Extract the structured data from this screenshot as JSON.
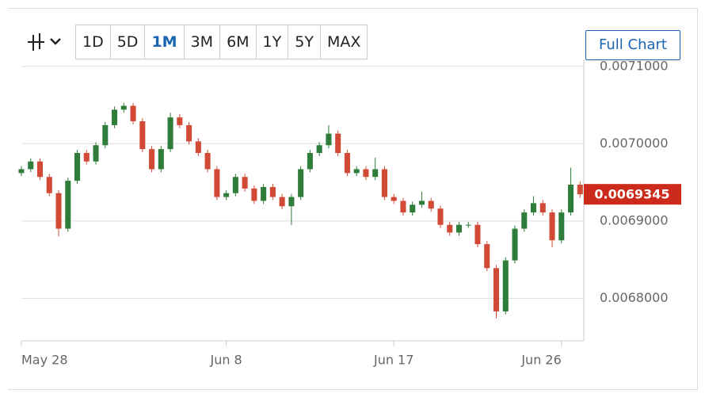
{
  "toolbar": {
    "ranges": [
      "1D",
      "5D",
      "1M",
      "3M",
      "6M",
      "1Y",
      "5Y",
      "MAX"
    ],
    "active": "1M",
    "full_chart": "Full Chart"
  },
  "chart_data": {
    "type": "candlestick",
    "x": [
      0,
      0.5,
      1,
      1.5,
      2,
      2.5,
      3,
      3.5,
      4,
      4.5,
      5,
      5.5,
      6,
      6.5,
      7,
      7.5,
      8,
      8.5,
      9,
      9.5,
      10,
      10.5,
      11,
      11.5,
      12,
      12.5,
      13,
      13.5,
      14,
      14.5,
      15,
      15.5,
      16,
      16.5,
      17,
      17.5,
      18,
      18.5,
      19,
      19.5,
      20,
      20.5,
      21,
      21.5,
      22,
      22.5,
      23,
      23.5,
      24,
      24.5,
      25,
      25.5,
      26,
      26.5,
      27,
      27.5,
      28,
      28.5,
      29,
      29.5,
      30
    ],
    "open": [
      0.006962,
      0.006967,
      0.006977,
      0.006957,
      0.006936,
      0.00689,
      0.006952,
      0.006988,
      0.006977,
      0.006998,
      0.007024,
      0.007044,
      0.007049,
      0.007029,
      0.006993,
      0.006967,
      0.006993,
      0.007034,
      0.007024,
      0.007003,
      0.006988,
      0.006967,
      0.006931,
      0.006936,
      0.006957,
      0.006942,
      0.006926,
      0.006944,
      0.006931,
      0.006919,
      0.006931,
      0.006967,
      0.006988,
      0.006998,
      0.007013,
      0.006988,
      0.006962,
      0.006967,
      0.006957,
      0.006967,
      0.006931,
      0.006926,
      0.006911,
      0.006921,
      0.006926,
      0.006916,
      0.006895,
      0.006885,
      0.006895,
      0.006895,
      0.00687,
      0.006839,
      0.006783,
      0.006849,
      0.00689,
      0.006911,
      0.006923,
      0.006911,
      0.006875,
      0.006911,
      0.006947
    ],
    "high": [
      0.006971,
      0.006981,
      0.006981,
      0.006961,
      0.00694,
      0.006956,
      0.006992,
      0.006992,
      0.007002,
      0.007028,
      0.007048,
      0.007053,
      0.007053,
      0.007033,
      0.006997,
      0.006997,
      0.00704,
      0.007038,
      0.007028,
      0.007007,
      0.006992,
      0.006971,
      0.00694,
      0.006961,
      0.006961,
      0.006946,
      0.006948,
      0.006948,
      0.006935,
      0.006935,
      0.006971,
      0.006992,
      0.007002,
      0.007024,
      0.007017,
      0.006992,
      0.006971,
      0.006971,
      0.006982,
      0.006971,
      0.006935,
      0.00693,
      0.006925,
      0.006938,
      0.00693,
      0.00692,
      0.006899,
      0.006899,
      0.006899,
      0.006899,
      0.006874,
      0.006843,
      0.006853,
      0.006894,
      0.006915,
      0.006932,
      0.006927,
      0.006915,
      0.006915,
      0.006969,
      0.006951
    ],
    "low": [
      0.006958,
      0.006963,
      0.006953,
      0.006932,
      0.00688,
      0.006886,
      0.006948,
      0.006973,
      0.006973,
      0.006994,
      0.00702,
      0.00704,
      0.007025,
      0.006989,
      0.006963,
      0.006963,
      0.006989,
      0.00702,
      0.006999,
      0.006984,
      0.006963,
      0.006927,
      0.006927,
      0.006932,
      0.006938,
      0.006922,
      0.006922,
      0.006927,
      0.006915,
      0.006895,
      0.006927,
      0.006963,
      0.006984,
      0.006994,
      0.006984,
      0.006958,
      0.006958,
      0.006953,
      0.006953,
      0.006927,
      0.006922,
      0.006907,
      0.006907,
      0.006917,
      0.006912,
      0.006891,
      0.006881,
      0.006881,
      0.006891,
      0.006866,
      0.006835,
      0.006774,
      0.006779,
      0.006845,
      0.006886,
      0.006907,
      0.006907,
      0.006866,
      0.006871,
      0.006907,
      0.00693
    ],
    "close": [
      0.006967,
      0.006977,
      0.006957,
      0.006936,
      0.00689,
      0.006952,
      0.006988,
      0.006977,
      0.006998,
      0.007024,
      0.007044,
      0.007049,
      0.007029,
      0.006993,
      0.006967,
      0.006993,
      0.007034,
      0.007024,
      0.007003,
      0.006988,
      0.006967,
      0.006931,
      0.006936,
      0.006957,
      0.006942,
      0.006926,
      0.006944,
      0.006931,
      0.006919,
      0.006931,
      0.006967,
      0.006988,
      0.006998,
      0.007013,
      0.006988,
      0.006962,
      0.006967,
      0.006957,
      0.006967,
      0.006931,
      0.006926,
      0.006911,
      0.006921,
      0.006926,
      0.006916,
      0.006895,
      0.006885,
      0.006895,
      0.006895,
      0.00687,
      0.006839,
      0.006783,
      0.006849,
      0.00689,
      0.006911,
      0.006923,
      0.006911,
      0.006875,
      0.006911,
      0.006947,
      0.0069345
    ],
    "up_color": "#2f7d3a",
    "down_color": "#d24a35",
    "xlim": [
      0,
      30.2
    ],
    "xticks": [
      {
        "value": 0,
        "label": "May 28"
      },
      {
        "value": 11,
        "label": "Jun 8"
      },
      {
        "value": 20,
        "label": "Jun 17"
      },
      {
        "value": 29,
        "label": "Jun 26"
      }
    ],
    "ylim": [
      0.006745,
      0.007109
    ],
    "yticks": [
      {
        "value": 0.0068,
        "label": "0.0068000"
      },
      {
        "value": 0.0069,
        "label": "0.0069000"
      },
      {
        "value": 0.007,
        "label": "0.0070000"
      },
      {
        "value": 0.0071,
        "label": "0.0071000"
      }
    ],
    "grid": true,
    "last_price": 0.0069345,
    "last_price_color": "#cc2a1a"
  }
}
